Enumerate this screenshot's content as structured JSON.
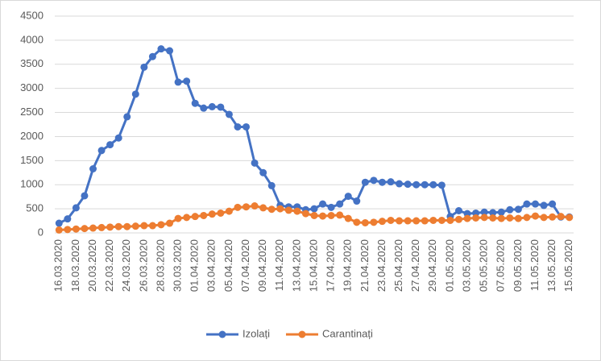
{
  "chart_data": {
    "type": "line",
    "categories": [
      "16.03.2020",
      null,
      "18.03.2020",
      null,
      "20.03.2020",
      null,
      "22.03.2020",
      null,
      "24.03.2020",
      null,
      "26.03.2020",
      null,
      "28.03.2020",
      null,
      "30.03.2020",
      null,
      "01.04.2020",
      null,
      "03.04.2020",
      null,
      "05.04.2020",
      null,
      "07.04.2020",
      null,
      "09.04.2020",
      null,
      "11.04.2020",
      null,
      "13.04.2020",
      null,
      "15.04.2020",
      null,
      "17.04.2020",
      null,
      "19.04.2020",
      null,
      "21.04.2020",
      null,
      "23.04.2020",
      null,
      "25.04.2020",
      null,
      "27.04.2020",
      null,
      "29.04.2020",
      null,
      "01.05.2020",
      null,
      "03.05.2020",
      null,
      "05.05.2020",
      null,
      "07.05.2020",
      null,
      "09.05.2020",
      null,
      "11.05.2020",
      null,
      "13.05.2020",
      null,
      "15.05.2020"
    ],
    "series": [
      {
        "name": "Izolați",
        "color": "#4472c4",
        "values": [
          200,
          290,
          520,
          770,
          1330,
          1710,
          1830,
          1970,
          2410,
          2880,
          3440,
          3660,
          3820,
          3780,
          3130,
          3150,
          2690,
          2590,
          2620,
          2610,
          2460,
          2200,
          2200,
          1450,
          1250,
          980,
          570,
          540,
          540,
          480,
          500,
          600,
          530,
          600,
          760,
          660,
          1050,
          1090,
          1050,
          1060,
          1020,
          1010,
          1000,
          1000,
          1000,
          990,
          340,
          460,
          400,
          410,
          430,
          420,
          430,
          480,
          490,
          600,
          600,
          570,
          600,
          330,
          330
        ]
      },
      {
        "name": "Carantinați",
        "color": "#ed7d31",
        "values": [
          60,
          70,
          80,
          90,
          100,
          110,
          120,
          130,
          130,
          140,
          150,
          150,
          170,
          200,
          300,
          320,
          340,
          360,
          390,
          410,
          450,
          530,
          540,
          560,
          520,
          490,
          500,
          470,
          450,
          400,
          360,
          350,
          360,
          370,
          300,
          220,
          210,
          220,
          240,
          260,
          250,
          250,
          250,
          250,
          260,
          260,
          260,
          280,
          300,
          310,
          320,
          310,
          300,
          310,
          300,
          320,
          350,
          320,
          330,
          340,
          320
        ]
      }
    ],
    "ylim": [
      0,
      4500
    ],
    "yticks": [
      0,
      500,
      1000,
      1500,
      2000,
      2500,
      3000,
      3500,
      4000,
      4500
    ],
    "grid": true,
    "legend": "bottom"
  }
}
